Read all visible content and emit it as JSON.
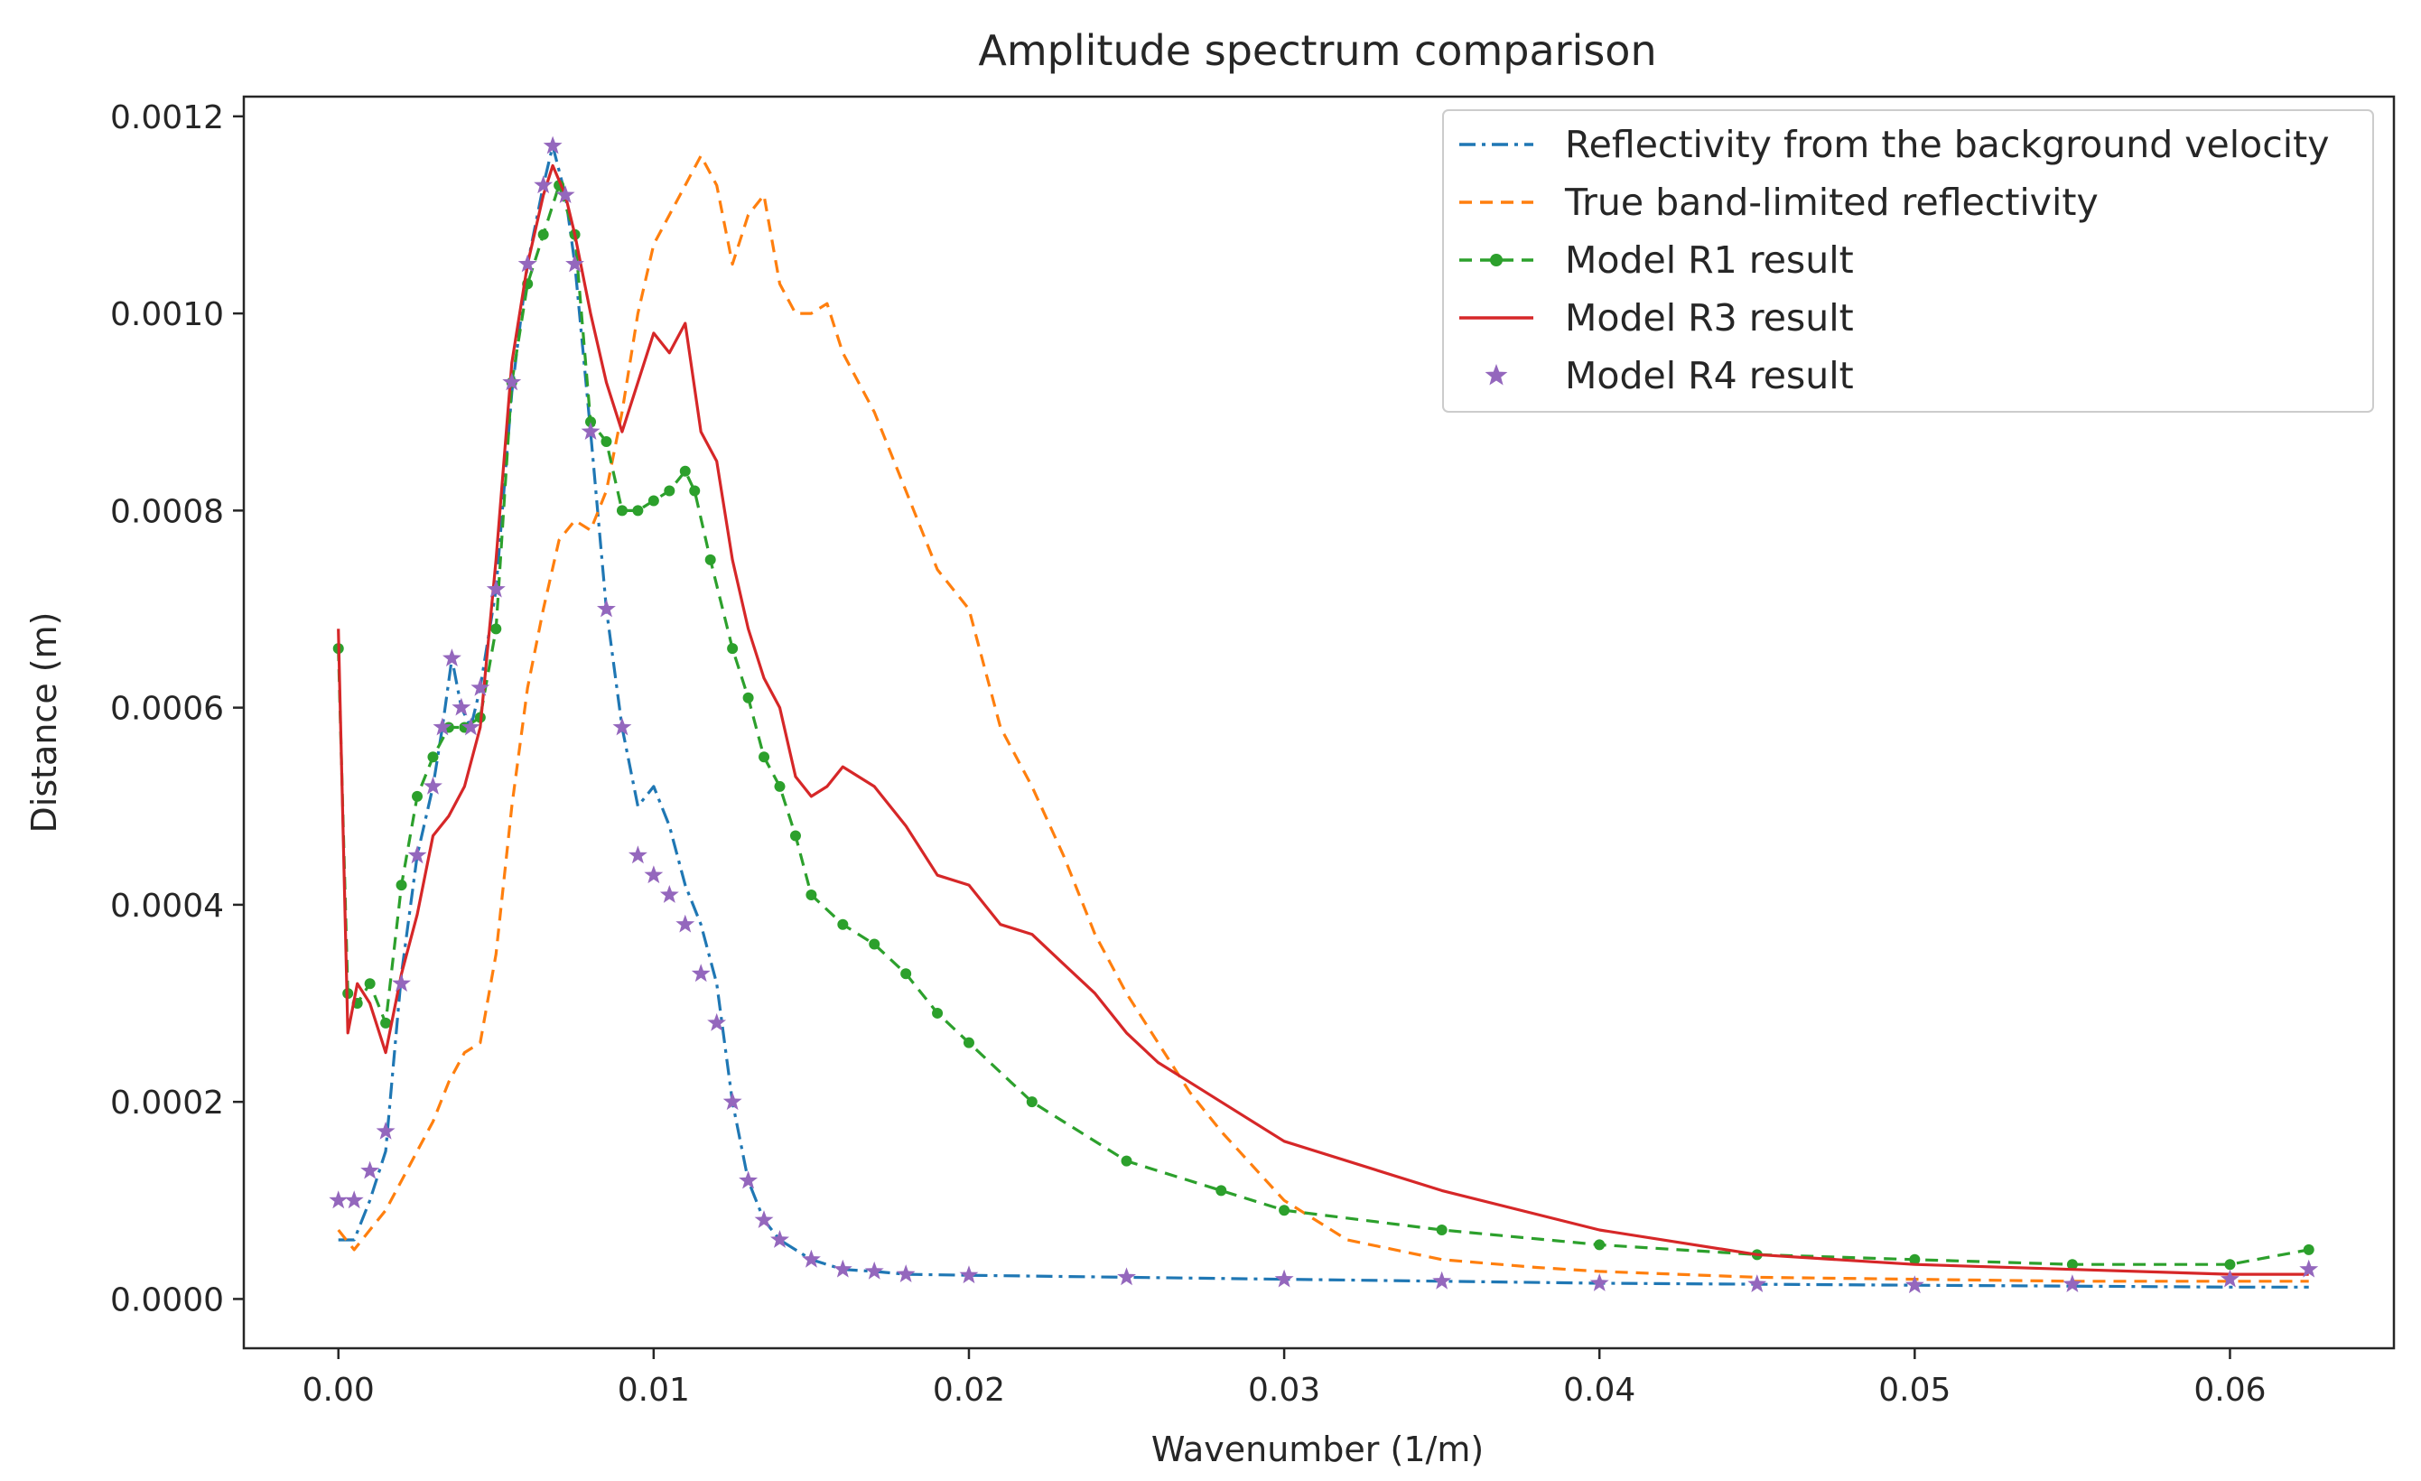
{
  "chart_data": {
    "type": "line",
    "title": "Amplitude spectrum comparison",
    "xlabel": "Wavenumber (1/m)",
    "ylabel": "Distance (m)",
    "xlim": [
      -0.003,
      0.0652
    ],
    "ylim": [
      -5e-05,
      0.00122
    ],
    "grid": false,
    "legend_position": "top-right",
    "x_ticks": [
      0.0,
      0.01,
      0.02,
      0.03,
      0.04,
      0.05,
      0.06
    ],
    "x_tick_labels": [
      "0.00",
      "0.01",
      "0.02",
      "0.03",
      "0.04",
      "0.05",
      "0.06"
    ],
    "y_ticks": [
      0.0,
      0.0002,
      0.0004,
      0.0006,
      0.0008,
      0.001,
      0.0012
    ],
    "y_tick_labels": [
      "0.0000",
      "0.0002",
      "0.0004",
      "0.0006",
      "0.0008",
      "0.0010",
      "0.0012"
    ],
    "series": [
      {
        "name": "Reflectivity from the background velocity",
        "color": "#1f77b4",
        "style": "dashdot",
        "x": [
          0,
          0.0005,
          0.001,
          0.0015,
          0.002,
          0.0025,
          0.003,
          0.0033,
          0.0036,
          0.0039,
          0.0042,
          0.0045,
          0.005,
          0.0055,
          0.006,
          0.0065,
          0.0068,
          0.0072,
          0.0075,
          0.008,
          0.0085,
          0.009,
          0.0095,
          0.01,
          0.0105,
          0.011,
          0.0115,
          0.012,
          0.0125,
          0.013,
          0.0135,
          0.014,
          0.015,
          0.016,
          0.017,
          0.018,
          0.02,
          0.025,
          0.03,
          0.035,
          0.04,
          0.045,
          0.05,
          0.055,
          0.06,
          0.0625
        ],
        "y": [
          6e-05,
          6e-05,
          0.0001,
          0.00015,
          0.00033,
          0.00045,
          0.00052,
          0.00058,
          0.00065,
          0.0006,
          0.00058,
          0.00062,
          0.00072,
          0.00092,
          0.00105,
          0.00113,
          0.00117,
          0.00112,
          0.00105,
          0.00088,
          0.0007,
          0.00058,
          0.0005,
          0.00052,
          0.00048,
          0.00042,
          0.00038,
          0.00032,
          0.0002,
          0.00012,
          8e-05,
          6e-05,
          4e-05,
          3e-05,
          2.8e-05,
          2.5e-05,
          2.4e-05,
          2.2e-05,
          2e-05,
          1.8e-05,
          1.6e-05,
          1.5e-05,
          1.4e-05,
          1.3e-05,
          1.2e-05,
          1.2e-05
        ]
      },
      {
        "name": "True band-limited reflectivity",
        "color": "#ff7f0e",
        "style": "dashed",
        "x": [
          0,
          0.0005,
          0.001,
          0.0015,
          0.002,
          0.0025,
          0.003,
          0.0035,
          0.004,
          0.0045,
          0.005,
          0.0055,
          0.006,
          0.0065,
          0.007,
          0.0075,
          0.008,
          0.0085,
          0.009,
          0.0095,
          0.01,
          0.0105,
          0.011,
          0.0115,
          0.012,
          0.0125,
          0.013,
          0.0135,
          0.014,
          0.0145,
          0.015,
          0.0155,
          0.016,
          0.017,
          0.018,
          0.019,
          0.02,
          0.021,
          0.022,
          0.023,
          0.024,
          0.025,
          0.026,
          0.027,
          0.028,
          0.03,
          0.032,
          0.035,
          0.038,
          0.04,
          0.045,
          0.05,
          0.055,
          0.06,
          0.0625
        ],
        "y": [
          7e-05,
          5e-05,
          7e-05,
          9e-05,
          0.00012,
          0.00015,
          0.00018,
          0.00022,
          0.00025,
          0.00026,
          0.00035,
          0.0005,
          0.00062,
          0.0007,
          0.00077,
          0.00079,
          0.00078,
          0.00082,
          0.0009,
          0.001,
          0.00107,
          0.0011,
          0.00113,
          0.00116,
          0.00113,
          0.00105,
          0.0011,
          0.00112,
          0.00103,
          0.001,
          0.001,
          0.00101,
          0.00096,
          0.0009,
          0.00082,
          0.00074,
          0.0007,
          0.00058,
          0.00052,
          0.00045,
          0.00037,
          0.00031,
          0.00026,
          0.00021,
          0.00017,
          0.0001,
          6e-05,
          4e-05,
          3.2e-05,
          2.8e-05,
          2.2e-05,
          2e-05,
          1.8e-05,
          1.8e-05,
          1.8e-05
        ]
      },
      {
        "name": "Model R1 result",
        "color": "#2ca02c",
        "style": "dashed-dots",
        "x": [
          0,
          0.0003,
          0.0006,
          0.001,
          0.0015,
          0.002,
          0.0025,
          0.003,
          0.0035,
          0.004,
          0.0045,
          0.005,
          0.0055,
          0.006,
          0.0065,
          0.007,
          0.0075,
          0.008,
          0.0085,
          0.009,
          0.0095,
          0.01,
          0.0105,
          0.011,
          0.0113,
          0.0118,
          0.0125,
          0.013,
          0.0135,
          0.014,
          0.0145,
          0.015,
          0.016,
          0.017,
          0.018,
          0.019,
          0.02,
          0.022,
          0.025,
          0.028,
          0.03,
          0.035,
          0.04,
          0.045,
          0.05,
          0.055,
          0.06,
          0.0625
        ],
        "y": [
          0.00066,
          0.00031,
          0.0003,
          0.00032,
          0.00028,
          0.00042,
          0.00051,
          0.00055,
          0.00058,
          0.00058,
          0.00059,
          0.00068,
          0.00093,
          0.00103,
          0.00108,
          0.00113,
          0.00108,
          0.00089,
          0.00087,
          0.0008,
          0.0008,
          0.00081,
          0.00082,
          0.00084,
          0.00082,
          0.00075,
          0.00066,
          0.00061,
          0.00055,
          0.00052,
          0.00047,
          0.00041,
          0.00038,
          0.00036,
          0.00033,
          0.00029,
          0.00026,
          0.0002,
          0.00014,
          0.00011,
          9e-05,
          7e-05,
          5.5e-05,
          4.5e-05,
          4e-05,
          3.5e-05,
          3.5e-05,
          5e-05
        ]
      },
      {
        "name": "Model R3 result",
        "color": "#d62728",
        "style": "solid",
        "x": [
          0,
          0.0003,
          0.0006,
          0.001,
          0.0015,
          0.002,
          0.0025,
          0.003,
          0.0035,
          0.004,
          0.0045,
          0.005,
          0.0055,
          0.006,
          0.0065,
          0.0068,
          0.0072,
          0.0075,
          0.008,
          0.0085,
          0.009,
          0.0095,
          0.01,
          0.0105,
          0.011,
          0.0115,
          0.012,
          0.0125,
          0.013,
          0.0135,
          0.014,
          0.0145,
          0.015,
          0.0155,
          0.016,
          0.017,
          0.018,
          0.019,
          0.02,
          0.021,
          0.022,
          0.023,
          0.024,
          0.025,
          0.026,
          0.027,
          0.028,
          0.03,
          0.035,
          0.04,
          0.045,
          0.05,
          0.055,
          0.06,
          0.0625
        ],
        "y": [
          0.00068,
          0.00027,
          0.00032,
          0.0003,
          0.00025,
          0.00033,
          0.00039,
          0.00047,
          0.00049,
          0.00052,
          0.00058,
          0.00075,
          0.00095,
          0.00105,
          0.00112,
          0.00115,
          0.00112,
          0.00108,
          0.001,
          0.00093,
          0.00088,
          0.00093,
          0.00098,
          0.00096,
          0.00099,
          0.00088,
          0.00085,
          0.00075,
          0.00068,
          0.00063,
          0.0006,
          0.00053,
          0.00051,
          0.00052,
          0.00054,
          0.00052,
          0.00048,
          0.00043,
          0.00042,
          0.00038,
          0.00037,
          0.00034,
          0.00031,
          0.00027,
          0.00024,
          0.00022,
          0.0002,
          0.00016,
          0.00011,
          7e-05,
          4.5e-05,
          3.5e-05,
          3e-05,
          2.5e-05,
          2.5e-05
        ]
      },
      {
        "name": "Model R4 result",
        "color": "#9467bd",
        "style": "stars",
        "x": [
          0,
          0.0005,
          0.001,
          0.0015,
          0.002,
          0.0025,
          0.003,
          0.0033,
          0.0036,
          0.0039,
          0.0042,
          0.0045,
          0.005,
          0.0055,
          0.006,
          0.0065,
          0.0068,
          0.0072,
          0.0075,
          0.008,
          0.0085,
          0.009,
          0.0095,
          0.01,
          0.0105,
          0.011,
          0.0115,
          0.012,
          0.0125,
          0.013,
          0.0135,
          0.014,
          0.015,
          0.016,
          0.017,
          0.018,
          0.02,
          0.025,
          0.03,
          0.035,
          0.04,
          0.045,
          0.05,
          0.055,
          0.06,
          0.0625
        ],
        "y": [
          0.0001,
          0.0001,
          0.00013,
          0.00017,
          0.00032,
          0.00045,
          0.00052,
          0.00058,
          0.00065,
          0.0006,
          0.00058,
          0.00062,
          0.00072,
          0.00093,
          0.00105,
          0.00113,
          0.00117,
          0.00112,
          0.00105,
          0.00088,
          0.0007,
          0.00058,
          0.00045,
          0.00043,
          0.00041,
          0.00038,
          0.00033,
          0.00028,
          0.0002,
          0.00012,
          8e-05,
          6e-05,
          4e-05,
          3e-05,
          2.8e-05,
          2.5e-05,
          2.4e-05,
          2.2e-05,
          2e-05,
          1.8e-05,
          1.6e-05,
          1.5e-05,
          1.4e-05,
          1.5e-05,
          2e-05,
          3e-05
        ]
      }
    ]
  }
}
